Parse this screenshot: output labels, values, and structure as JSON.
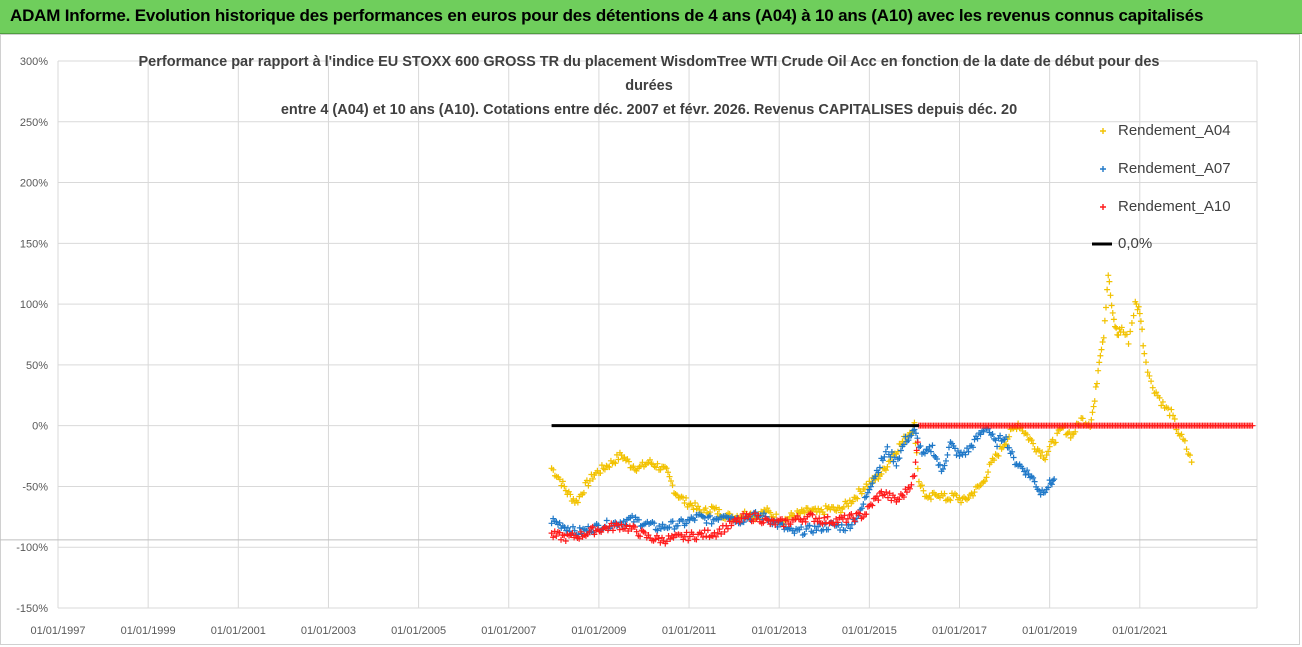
{
  "header": {
    "title": "ADAM Informe. Evolution historique des performances en euros pour des détentions de 4 ans (A04) à 10 ans (A10) avec les revenus connus capitalisés"
  },
  "colors": {
    "header_bg": "#6fce5c",
    "a04": "#f2c200",
    "a07": "#1f78c8",
    "a10": "#ff1a1a",
    "zero": "#000000",
    "grid": "#d9d9d9",
    "axis_text": "#595959"
  },
  "chart_data": {
    "type": "scatter",
    "title_lines": [
      "Performance par rapport à l'indice EU STOXX 600 GROSS TR  du placement WisdomTree WTI Crude Oil Acc en fonction de la date de début pour des",
      "durées",
      "entre 4 (A04) et 10 ans (A10). Cotations entre déc. 2007 et févr. 2026. Revenus CAPITALISES depuis déc. 20"
    ],
    "xlabel": "",
    "ylabel": "",
    "x_range": [
      1997.0,
      2023.6
    ],
    "ylim": [
      -150,
      300
    ],
    "y_ticks": [
      300,
      250,
      200,
      150,
      100,
      50,
      0,
      -50,
      -100,
      -150
    ],
    "y_tick_labels": [
      "300%",
      "250%",
      "200%",
      "150%",
      "100%",
      "50%",
      "0%",
      "-50%",
      "-100%",
      "-150%"
    ],
    "x_ticks": [
      1997,
      1999,
      2001,
      2003,
      2005,
      2007,
      2009,
      2011,
      2013,
      2015,
      2017,
      2019,
      2021
    ],
    "x_tick_labels": [
      "01/01/1997",
      "01/01/1999",
      "01/01/2001",
      "01/01/2003",
      "01/01/2005",
      "01/01/2007",
      "01/01/2009",
      "01/01/2011",
      "01/01/2013",
      "01/01/2015",
      "01/01/2017",
      "01/01/2019",
      "01/01/2021"
    ],
    "grid": true,
    "legend": [
      {
        "name": "Rendement_A04",
        "key": "a04",
        "style": "plus"
      },
      {
        "name": "Rendement_A07",
        "key": "a07",
        "style": "plus"
      },
      {
        "name": "Rendement_A10",
        "key": "a10",
        "style": "plus"
      },
      {
        "name": "0,0%",
        "key": "zero",
        "style": "line"
      }
    ],
    "legend_position": "top-right",
    "series": [
      {
        "name": "Rendement_A04",
        "key": "a04",
        "points": [
          [
            2007.95,
            -35
          ],
          [
            2008.1,
            -42
          ],
          [
            2008.3,
            -55
          ],
          [
            2008.5,
            -63
          ],
          [
            2008.7,
            -50
          ],
          [
            2008.9,
            -40
          ],
          [
            2009.1,
            -35
          ],
          [
            2009.3,
            -30
          ],
          [
            2009.5,
            -24
          ],
          [
            2009.7,
            -32
          ],
          [
            2009.9,
            -35
          ],
          [
            2010.1,
            -30
          ],
          [
            2010.3,
            -33
          ],
          [
            2010.5,
            -38
          ],
          [
            2010.7,
            -55
          ],
          [
            2010.9,
            -62
          ],
          [
            2011.1,
            -66
          ],
          [
            2011.3,
            -72
          ],
          [
            2011.5,
            -68
          ],
          [
            2011.7,
            -72
          ],
          [
            2011.9,
            -75
          ],
          [
            2012.1,
            -74
          ],
          [
            2012.3,
            -72
          ],
          [
            2012.5,
            -75
          ],
          [
            2012.7,
            -70
          ],
          [
            2012.9,
            -75
          ],
          [
            2013.1,
            -78
          ],
          [
            2013.3,
            -74
          ],
          [
            2013.5,
            -72
          ],
          [
            2013.7,
            -70
          ],
          [
            2013.9,
            -72
          ],
          [
            2014.1,
            -68
          ],
          [
            2014.3,
            -70
          ],
          [
            2014.5,
            -65
          ],
          [
            2014.7,
            -58
          ],
          [
            2014.9,
            -50
          ],
          [
            2015.1,
            -45
          ],
          [
            2015.3,
            -38
          ],
          [
            2015.5,
            -25
          ],
          [
            2015.7,
            -15
          ],
          [
            2015.9,
            -5
          ],
          [
            2016.0,
            0
          ],
          [
            2016.1,
            -45
          ],
          [
            2016.3,
            -62
          ],
          [
            2016.5,
            -55
          ],
          [
            2016.7,
            -60
          ],
          [
            2016.9,
            -58
          ],
          [
            2017.1,
            -62
          ],
          [
            2017.3,
            -55
          ],
          [
            2017.5,
            -48
          ],
          [
            2017.7,
            -32
          ],
          [
            2017.9,
            -20
          ],
          [
            2018.1,
            -8
          ],
          [
            2018.3,
            2
          ],
          [
            2018.5,
            -8
          ],
          [
            2018.7,
            -18
          ],
          [
            2018.9,
            -25
          ],
          [
            2019.1,
            -12
          ],
          [
            2019.3,
            -2
          ],
          [
            2019.5,
            -8
          ],
          [
            2019.7,
            5
          ],
          [
            2019.9,
            2
          ],
          [
            2020.0,
            20
          ],
          [
            2020.1,
            55
          ],
          [
            2020.2,
            75
          ],
          [
            2020.3,
            125
          ],
          [
            2020.4,
            90
          ],
          [
            2020.5,
            75
          ],
          [
            2020.6,
            80
          ],
          [
            2020.75,
            70
          ],
          [
            2020.9,
            100
          ],
          [
            2021.0,
            95
          ],
          [
            2021.1,
            60
          ],
          [
            2021.25,
            35
          ],
          [
            2021.4,
            25
          ],
          [
            2021.55,
            15
          ],
          [
            2021.7,
            10
          ],
          [
            2021.85,
            -5
          ],
          [
            2022.0,
            -15
          ],
          [
            2022.15,
            -30
          ]
        ]
      },
      {
        "name": "Rendement_A07",
        "key": "a07",
        "points": [
          [
            2007.95,
            -78
          ],
          [
            2008.2,
            -82
          ],
          [
            2008.5,
            -88
          ],
          [
            2008.8,
            -85
          ],
          [
            2009.1,
            -82
          ],
          [
            2009.4,
            -80
          ],
          [
            2009.7,
            -77
          ],
          [
            2010.0,
            -80
          ],
          [
            2010.3,
            -84
          ],
          [
            2010.6,
            -82
          ],
          [
            2010.9,
            -80
          ],
          [
            2011.2,
            -75
          ],
          [
            2011.5,
            -78
          ],
          [
            2011.8,
            -72
          ],
          [
            2012.1,
            -78
          ],
          [
            2012.4,
            -74
          ],
          [
            2012.7,
            -75
          ],
          [
            2013.0,
            -82
          ],
          [
            2013.3,
            -88
          ],
          [
            2013.6,
            -86
          ],
          [
            2013.9,
            -84
          ],
          [
            2014.2,
            -82
          ],
          [
            2014.5,
            -84
          ],
          [
            2014.8,
            -72
          ],
          [
            2015.0,
            -50
          ],
          [
            2015.2,
            -35
          ],
          [
            2015.4,
            -20
          ],
          [
            2015.6,
            -30
          ],
          [
            2015.8,
            -12
          ],
          [
            2016.0,
            -5
          ],
          [
            2016.2,
            -25
          ],
          [
            2016.4,
            -18
          ],
          [
            2016.6,
            -38
          ],
          [
            2016.8,
            -15
          ],
          [
            2017.0,
            -25
          ],
          [
            2017.2,
            -20
          ],
          [
            2017.4,
            -10
          ],
          [
            2017.6,
            0
          ],
          [
            2017.8,
            -15
          ],
          [
            2018.0,
            -8
          ],
          [
            2018.2,
            -28
          ],
          [
            2018.4,
            -35
          ],
          [
            2018.6,
            -42
          ],
          [
            2018.8,
            -55
          ],
          [
            2019.0,
            -48
          ],
          [
            2019.1,
            -44
          ]
        ]
      },
      {
        "name": "Rendement_A10",
        "key": "a10",
        "points": [
          [
            2007.95,
            -90
          ],
          [
            2008.3,
            -92
          ],
          [
            2008.6,
            -90
          ],
          [
            2008.9,
            -86
          ],
          [
            2009.2,
            -84
          ],
          [
            2009.5,
            -82
          ],
          [
            2009.8,
            -86
          ],
          [
            2010.1,
            -92
          ],
          [
            2010.4,
            -94
          ],
          [
            2010.8,
            -92
          ],
          [
            2011.2,
            -90
          ],
          [
            2011.6,
            -88
          ],
          [
            2011.9,
            -82
          ],
          [
            2012.2,
            -76
          ],
          [
            2012.5,
            -75
          ],
          [
            2012.8,
            -80
          ],
          [
            2013.1,
            -80
          ],
          [
            2013.4,
            -77
          ],
          [
            2013.7,
            -75
          ],
          [
            2014.0,
            -78
          ],
          [
            2014.3,
            -78
          ],
          [
            2014.6,
            -76
          ],
          [
            2014.9,
            -73
          ],
          [
            2015.1,
            -62
          ],
          [
            2015.3,
            -55
          ],
          [
            2015.6,
            -62
          ],
          [
            2015.8,
            -55
          ],
          [
            2016.0,
            -42
          ],
          [
            2016.1,
            0
          ],
          [
            2017.0,
            0
          ],
          [
            2018.0,
            0
          ],
          [
            2019.0,
            0
          ],
          [
            2020.0,
            0
          ],
          [
            2021.0,
            0
          ],
          [
            2022.0,
            0
          ],
          [
            2023.0,
            0
          ],
          [
            2023.5,
            0
          ]
        ]
      },
      {
        "name": "0,0%",
        "key": "zero",
        "line": [
          [
            2007.95,
            0
          ],
          [
            2016.1,
            0
          ]
        ]
      }
    ]
  }
}
